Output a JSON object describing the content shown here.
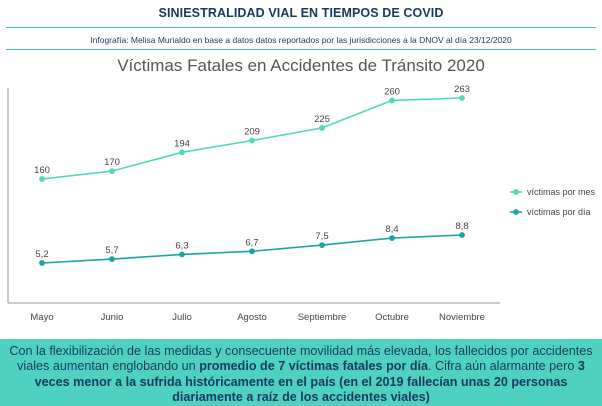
{
  "header": {
    "title": "SINIESTRALIDAD VIAL EN TIEMPOS DE COVID",
    "credit": "Infografía: Melisa Murialdo en base a datos datos reportados por las jurisdicciones a la DNOV al día 23/12/2020",
    "rule_color": "#3cc8b4"
  },
  "chart_data": {
    "type": "line",
    "title": "Víctimas Fatales en Accidentes de Tránsito 2020",
    "categories": [
      "Mayo",
      "Junio",
      "Julio",
      "Agosto",
      "Septiembre",
      "Octubre",
      "Noviembre"
    ],
    "series": [
      {
        "name": "víctimas por mes",
        "color": "#4fd8bf",
        "values": [
          160,
          170,
          194,
          209,
          225,
          260,
          263
        ],
        "labels": [
          "160",
          "170",
          "194",
          "209",
          "225",
          "260",
          "263"
        ]
      },
      {
        "name": "víctimas por día",
        "color": "#1aa5a5",
        "values": [
          5.2,
          5.7,
          6.3,
          6.7,
          7.5,
          8.4,
          8.8
        ],
        "labels": [
          "5,2",
          "5,7",
          "6,3",
          "6,7",
          "7,5",
          "8,4",
          "8,8"
        ]
      }
    ],
    "legend_position": "right",
    "grid": false
  },
  "footer": {
    "background": "#4fd1c0",
    "p1": "Con la flexibilización de las medidas y consecuente movilidad más elevada, los fallecidos por accidentes viales aumentan englobando un ",
    "b1": "promedio de 7 víctimas fatales por día",
    "p2": ". Cifra aún alarmante pero ",
    "b2": "3 veces menor a la sufrida históricamente en el país (en el 2019 fallecían unas 20 personas diariamente a raíz de los accidentes viales)"
  }
}
